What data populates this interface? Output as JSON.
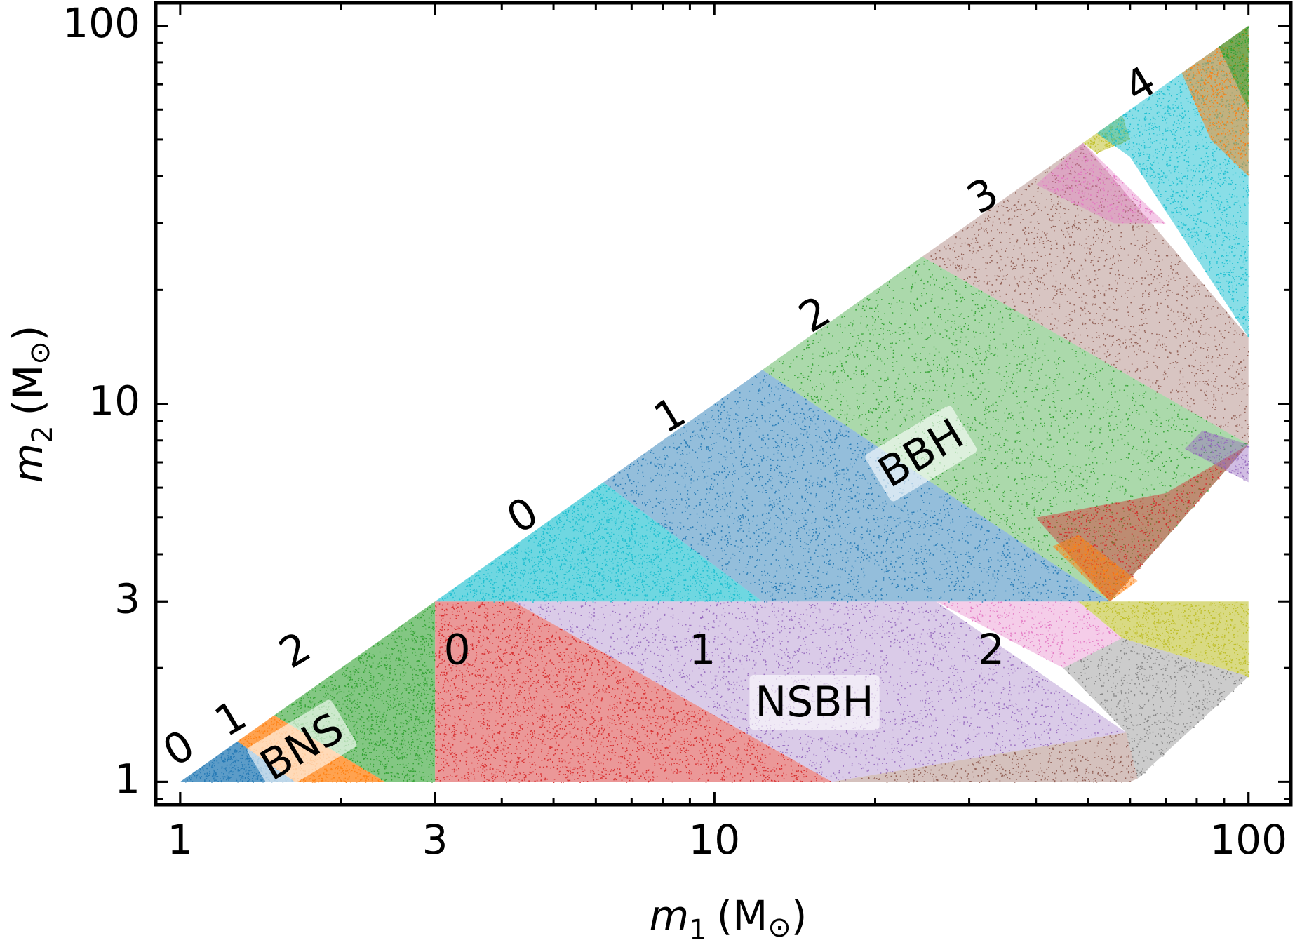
{
  "chart_data": {
    "type": "scatter",
    "title": "",
    "xlabel": "m",
    "xlabel_sub": "1",
    "xlabel_unit": "(M",
    "ylabel": "m",
    "ylabel_sub": "2",
    "ylabel_unit": "(M",
    "sun_symbol": "⊙",
    "x_scale": "log",
    "y_scale": "log",
    "xlim": [
      0.9,
      120
    ],
    "ylim": [
      0.87,
      115
    ],
    "xticks": [
      {
        "value": 1,
        "label": "1"
      },
      {
        "value": 3,
        "label": "3"
      },
      {
        "value": 10,
        "label": "10"
      },
      {
        "value": 100,
        "label": "100"
      }
    ],
    "yticks": [
      {
        "value": 1,
        "label": "1"
      },
      {
        "value": 3,
        "label": "3"
      },
      {
        "value": 10,
        "label": "10"
      },
      {
        "value": 100,
        "label": "100"
      }
    ],
    "grid": false,
    "legend": "none",
    "region_labels": [
      {
        "text": "BNS",
        "x": 1.7,
        "y": 1.22,
        "angle": -31
      },
      {
        "text": "NSBH",
        "x": 15.4,
        "y": 1.6,
        "angle": 0
      },
      {
        "text": "BBH",
        "x": 24.5,
        "y": 7.3,
        "angle": -31
      }
    ],
    "bin_labels": [
      {
        "text": "0",
        "x": 1.0,
        "y": 1.21,
        "angle": -31
      },
      {
        "text": "1",
        "x": 1.25,
        "y": 1.45,
        "angle": -31
      },
      {
        "text": "2",
        "x": 1.65,
        "y": 2.2,
        "angle": -31
      },
      {
        "text": "0",
        "x": 3.3,
        "y": 2.2,
        "angle": 0
      },
      {
        "text": "1",
        "x": 9.5,
        "y": 2.2,
        "angle": 0
      },
      {
        "text": "2",
        "x": 33.0,
        "y": 2.2,
        "angle": 0
      },
      {
        "text": "0",
        "x": 4.4,
        "y": 5.0,
        "angle": -31
      },
      {
        "text": "1",
        "x": 8.3,
        "y": 9.2,
        "angle": -31
      },
      {
        "text": "2",
        "x": 15.5,
        "y": 17.0,
        "angle": -31
      },
      {
        "text": "3",
        "x": 32.0,
        "y": 35.0,
        "angle": -31
      },
      {
        "text": "4",
        "x": 63.0,
        "y": 69.0,
        "angle": -31
      }
    ],
    "series": [
      {
        "group": "BNS",
        "bin": 0,
        "color": "#1f77b4",
        "density": 1.0,
        "polygon": [
          [
            1,
            1
          ],
          [
            1.28,
            1.28
          ],
          [
            1.64,
            1
          ]
        ]
      },
      {
        "group": "BNS",
        "bin": 1,
        "color": "#ff7f0e",
        "density": 1.0,
        "polygon": [
          [
            1.28,
            1.28
          ],
          [
            1.5,
            1.5
          ],
          [
            2.42,
            1
          ],
          [
            1.64,
            1
          ]
        ]
      },
      {
        "group": "BNS",
        "bin": 2,
        "color": "#2ca02c",
        "density": 0.75,
        "polygon": [
          [
            1.5,
            1.5
          ],
          [
            3,
            3
          ],
          [
            3,
            1
          ],
          [
            2.42,
            1
          ]
        ]
      },
      {
        "group": "NSBH",
        "bin": 0,
        "color": "#d62728",
        "density": 0.55,
        "polygon": [
          [
            3,
            1
          ],
          [
            3,
            3
          ],
          [
            4.2,
            3
          ],
          [
            16.6,
            1
          ]
        ]
      },
      {
        "group": "NSBH",
        "bin": 1,
        "color": "#9467bd",
        "density": 0.3,
        "polygon": [
          [
            4.2,
            3
          ],
          [
            26,
            3
          ],
          [
            59,
            1.35
          ],
          [
            16.6,
            1
          ]
        ]
      },
      {
        "group": "NSBH",
        "bin": 1,
        "color": "#8c564b",
        "density": 0.35,
        "polygon": [
          [
            16.6,
            1
          ],
          [
            59,
            1.35
          ],
          [
            62,
            1.02
          ],
          [
            60,
            1
          ]
        ]
      },
      {
        "group": "NSBH",
        "bin": 2,
        "color": "#e377c2",
        "density": 0.35,
        "polygon": [
          [
            26,
            3
          ],
          [
            48,
            3
          ],
          [
            58,
            2.4
          ],
          [
            45,
            2.0
          ]
        ]
      },
      {
        "group": "NSBH",
        "bin": 2,
        "color": "#7f7f7f",
        "density": 0.4,
        "polygon": [
          [
            45,
            2.0
          ],
          [
            58,
            2.4
          ],
          [
            100,
            1.9
          ],
          [
            62,
            1.02
          ],
          [
            59,
            1.35
          ]
        ]
      },
      {
        "group": "NSBH",
        "bin": 2,
        "color": "#bcbd22",
        "density": 0.7,
        "polygon": [
          [
            48,
            3
          ],
          [
            100,
            3
          ],
          [
            100,
            1.9
          ],
          [
            58,
            2.4
          ]
        ]
      },
      {
        "group": "BBH",
        "bin": 0,
        "color": "#17becf",
        "density": 0.8,
        "polygon": [
          [
            3,
            3
          ],
          [
            6.2,
            6.2
          ],
          [
            12.3,
            3
          ]
        ]
      },
      {
        "group": "BBH",
        "bin": 1,
        "color": "#1f77b4",
        "density": 0.55,
        "polygon": [
          [
            6.2,
            6.2
          ],
          [
            12.3,
            12.3
          ],
          [
            55,
            3
          ],
          [
            12.3,
            3
          ]
        ]
      },
      {
        "group": "BBH",
        "bin": 2,
        "color": "#2ca02c",
        "density": 0.4,
        "polygon": [
          [
            12.3,
            12.3
          ],
          [
            24.5,
            24.5
          ],
          [
            100,
            7.8
          ],
          [
            55,
            3
          ]
        ]
      },
      {
        "group": "BBH",
        "bin": 2,
        "color": "#d62728",
        "density": 0.45,
        "polygon": [
          [
            40,
            5
          ],
          [
            55,
            3
          ],
          [
            100,
            7.8
          ],
          [
            70,
            5.8
          ]
        ]
      },
      {
        "group": "BBH",
        "bin": 2,
        "color": "#ff7f0e",
        "density": 0.5,
        "polygon": [
          [
            43,
            4.2
          ],
          [
            55,
            3
          ],
          [
            62,
            3.4
          ],
          [
            48,
            4.5
          ]
        ]
      },
      {
        "group": "BBH",
        "bin": 3,
        "color": "#8c564b",
        "density": 0.3,
        "polygon": [
          [
            24.5,
            24.5
          ],
          [
            49,
            49
          ],
          [
            100,
            15
          ],
          [
            100,
            7.8
          ]
        ]
      },
      {
        "group": "BBH",
        "bin": 3,
        "color": "#e377c2",
        "density": 0.4,
        "polygon": [
          [
            40,
            38
          ],
          [
            49,
            49
          ],
          [
            70,
            30
          ],
          [
            56,
            30
          ]
        ]
      },
      {
        "group": "BBH",
        "bin": 3,
        "color": "#9467bd",
        "density": 0.45,
        "polygon": [
          [
            100,
            7.8
          ],
          [
            100,
            6.2
          ],
          [
            76,
            7.6
          ],
          [
            82,
            8.5
          ]
        ]
      },
      {
        "group": "BBH",
        "bin": 4,
        "color": "#bcbd22",
        "density": 0.6,
        "polygon": [
          [
            49,
            49
          ],
          [
            58,
            58
          ],
          [
            60,
            50
          ],
          [
            52,
            46
          ]
        ]
      },
      {
        "group": "BBH",
        "bin": 4,
        "color": "#17becf",
        "density": 0.6,
        "polygon": [
          [
            52,
            52
          ],
          [
            100,
            100
          ],
          [
            100,
            15
          ],
          [
            60,
            45
          ]
        ]
      },
      {
        "group": "BBH",
        "bin": 4,
        "color": "#ff7f0e",
        "density": 0.55,
        "polygon": [
          [
            75,
            75
          ],
          [
            100,
            100
          ],
          [
            100,
            40
          ],
          [
            85,
            50
          ]
        ]
      },
      {
        "group": "BBH",
        "bin": 4,
        "color": "#2ca02c",
        "density": 0.55,
        "polygon": [
          [
            88,
            88
          ],
          [
            100,
            100
          ],
          [
            100,
            60
          ],
          [
            95,
            70
          ]
        ]
      }
    ]
  }
}
